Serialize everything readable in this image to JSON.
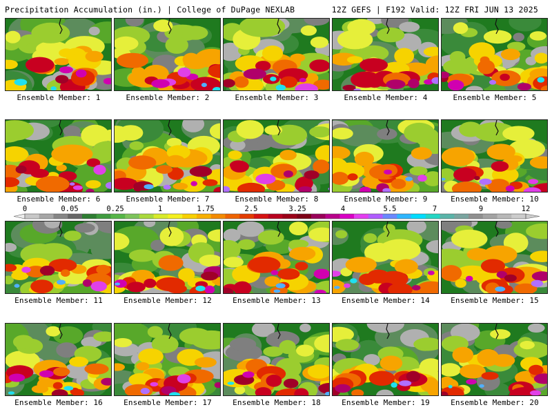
{
  "header": {
    "title_left": "Precipitation Accumulation (in.) | College of DuPage NEXLAB",
    "title_right": "12Z GEFS | F192 Valid: 12Z FRI JUN 13 2025"
  },
  "colors": {
    "map_scale": [
      "#b0b0b0",
      "#7f7f7f",
      "#5c8c5c",
      "#3a8a3a",
      "#1f7a1f",
      "#58a82a",
      "#9bcd2f",
      "#e6ef3a",
      "#f6d300",
      "#f7a400",
      "#f06a00",
      "#e22a00",
      "#c80020",
      "#a00028",
      "#b0006a",
      "#d000b0",
      "#e040e8",
      "#b070ff",
      "#50b0ff",
      "#20e0f0"
    ]
  },
  "colorbar": {
    "labels": [
      "0",
      "0.05",
      "0.25",
      "1",
      "1.75",
      "2.5",
      "3.25",
      "4",
      "5.5",
      "7",
      "9",
      "12"
    ],
    "swatches": [
      "#c8c8c8",
      "#a6a6a6",
      "#858585",
      "#666666",
      "#2e7d32",
      "#3f9b3f",
      "#55b547",
      "#7cc35a",
      "#a9d93c",
      "#d8ea2a",
      "#f4f01f",
      "#f8d000",
      "#f8b000",
      "#f38a00",
      "#ee6300",
      "#e23b00",
      "#d51212",
      "#b8001f",
      "#9a0018",
      "#7d0016",
      "#990059",
      "#b8008a",
      "#d800c4",
      "#e33df0",
      "#b05cff",
      "#6b88ff",
      "#2eb6ff",
      "#00dcff",
      "#24d6c4",
      "#59b4a9",
      "#7aa5a0",
      "#8f8f8f",
      "#a3a3a3",
      "#b8b8b8",
      "#cccccc"
    ]
  },
  "members": [
    {
      "label": "Ensemble Member: 1"
    },
    {
      "label": "Ensemble Member: 2"
    },
    {
      "label": "Ensemble Member: 3"
    },
    {
      "label": "Ensemble Member: 4"
    },
    {
      "label": "Ensemble Member: 5"
    },
    {
      "label": "Ensemble Member: 6"
    },
    {
      "label": "Ensemble Member: 7"
    },
    {
      "label": "Ensemble Member: 8"
    },
    {
      "label": "Ensemble Member: 9"
    },
    {
      "label": "Ensemble Member: 10"
    },
    {
      "label": "Ensemble Member: 11"
    },
    {
      "label": "Ensemble Member: 12"
    },
    {
      "label": "Ensemble Member: 13"
    },
    {
      "label": "Ensemble Member: 14"
    },
    {
      "label": "Ensemble Member: 15"
    },
    {
      "label": "Ensemble Member: 16"
    },
    {
      "label": "Ensemble Member: 17"
    },
    {
      "label": "Ensemble Member: 18"
    },
    {
      "label": "Ensemble Member: 19"
    },
    {
      "label": "Ensemble Member: 20"
    }
  ]
}
